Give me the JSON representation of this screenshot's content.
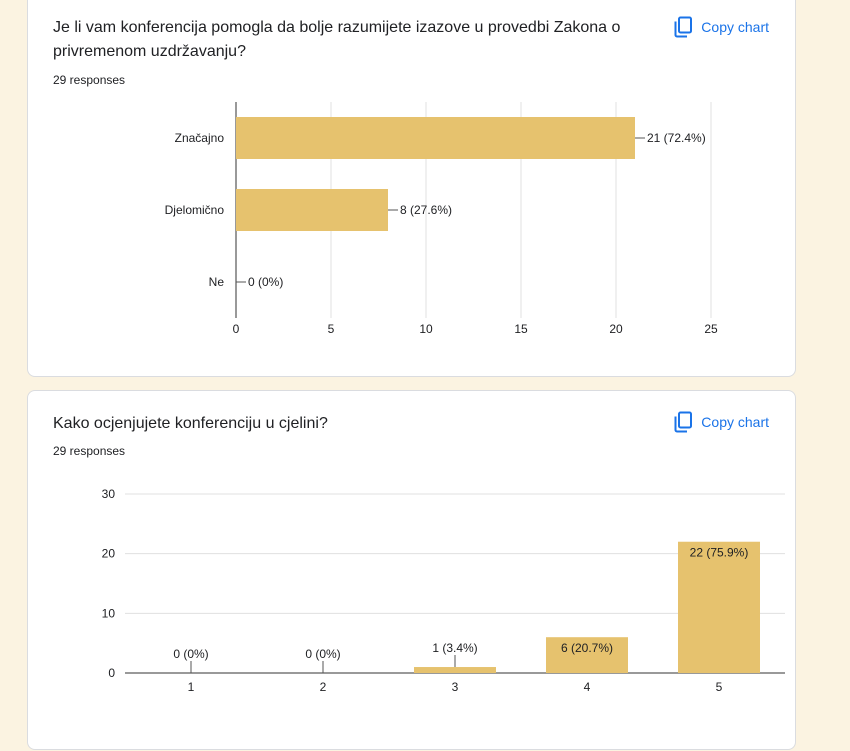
{
  "colors": {
    "bar": "#e6c26e",
    "accent": "#1a73e8",
    "grid": "#e0e0e0",
    "axis": "#333333",
    "background": "#fbf3e1"
  },
  "questions": [
    {
      "title": "Je li vam konferencija pomogla da bolje razumijete izazove u provedbi Zakona o privremenom uzdržavanju?",
      "responses": "29 responses",
      "copy_label": "Copy chart",
      "copy_icon": "copy-icon"
    },
    {
      "title": "Kako ocjenjujete konferenciju u cjelini?",
      "responses": "29 responses",
      "copy_label": "Copy chart",
      "copy_icon": "copy-icon"
    }
  ],
  "chart_data": [
    {
      "type": "bar",
      "orientation": "horizontal",
      "categories": [
        "Značajno",
        "Djelomično",
        "Ne"
      ],
      "values": [
        21,
        8,
        0
      ],
      "labels": [
        "21 (72.4%)",
        "8 (27.6%)",
        "0 (0%)"
      ],
      "xlim": [
        0,
        25
      ],
      "ticks": [
        0,
        5,
        10,
        15,
        20,
        25
      ],
      "grid": true
    },
    {
      "type": "bar",
      "orientation": "vertical",
      "categories": [
        "1",
        "2",
        "3",
        "4",
        "5"
      ],
      "values": [
        0,
        0,
        1,
        6,
        22
      ],
      "labels": [
        "0 (0%)",
        "0 (0%)",
        "1 (3.4%)",
        "6 (20.7%)",
        "22 (75.9%)"
      ],
      "ylim": [
        0,
        30
      ],
      "ticks": [
        0,
        10,
        20,
        30
      ],
      "grid": true
    }
  ]
}
